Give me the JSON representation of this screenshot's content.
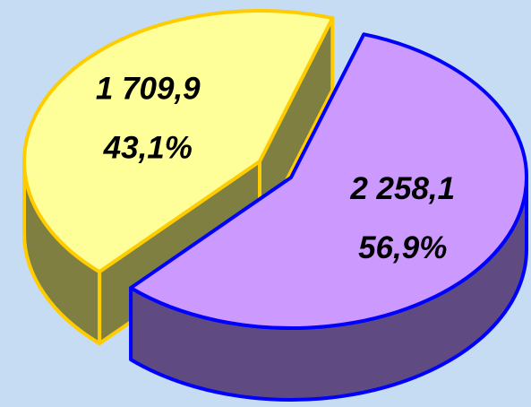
{
  "chart_data": {
    "type": "pie3d",
    "categories": [
      null,
      null
    ],
    "values": [
      2258.1,
      1709.9
    ],
    "value_labels": [
      "2 258,1",
      "1 709,9"
    ],
    "percents": [
      56.9,
      43.1
    ],
    "percent_labels": [
      "56,9%",
      "43,1%"
    ],
    "colors": [
      "#cc99ff",
      "#ffff99"
    ],
    "border_colors": [
      "#0000ff",
      "#ffcc00"
    ],
    "side_colors": [
      "#604a82",
      "#7f7f42"
    ]
  }
}
